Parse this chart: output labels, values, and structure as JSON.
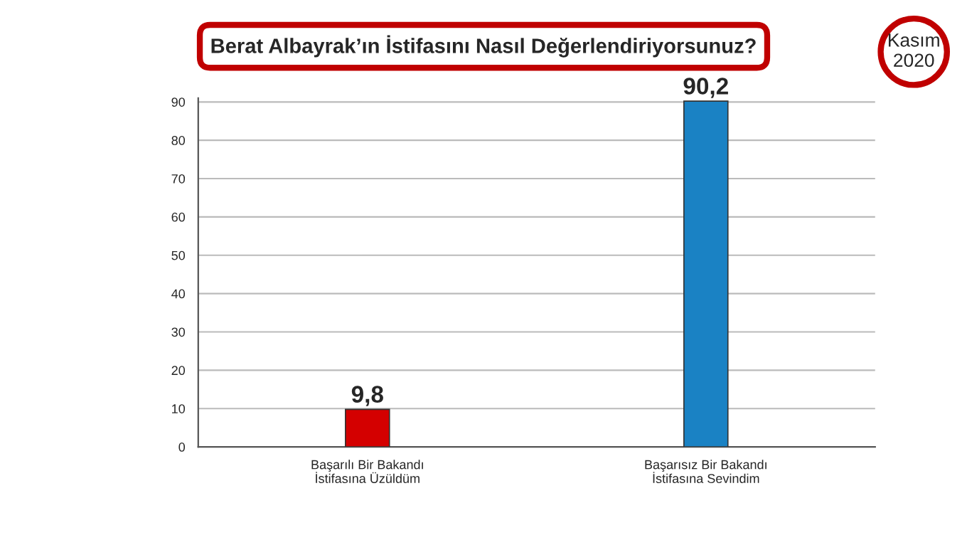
{
  "chart_data": {
    "type": "bar",
    "title": "Berat Albayrak’ın İstifasını Nasıl Değerlendiriyorsunuz?",
    "annotations": [
      "Kasım\n2020"
    ],
    "categories": [
      "Başarılı Bir Bakandı\nİstifasına Üzüldüm",
      "Başarısız Bir Bakandı\nİstifasına Sevindim"
    ],
    "values": [
      9.8,
      90.2
    ],
    "colors": [
      "#d40000",
      "#1a82c4"
    ],
    "ylim": [
      0,
      91
    ],
    "yticks": [
      0,
      10,
      20,
      30,
      40,
      50,
      60,
      70,
      80,
      90
    ],
    "grid": "y",
    "value_labels": [
      "9,8",
      "90,2"
    ]
  }
}
